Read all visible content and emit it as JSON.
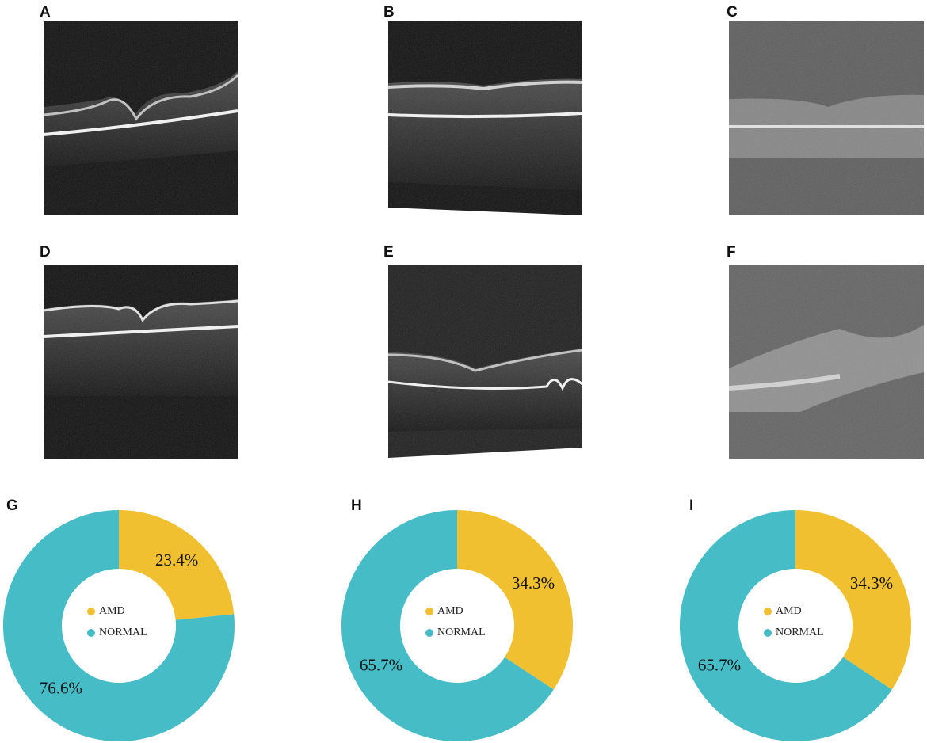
{
  "image_panels": [
    {
      "label": "A"
    },
    {
      "label": "B"
    },
    {
      "label": "C"
    },
    {
      "label": "D"
    },
    {
      "label": "E"
    },
    {
      "label": "F"
    }
  ],
  "chart_data": [
    {
      "type": "donut",
      "label": "G",
      "categories": [
        "AMD",
        "NORMAL"
      ],
      "values": [
        23.4,
        76.6
      ],
      "value_labels": [
        "23.4%",
        "76.6%"
      ],
      "colors": [
        "#f0c030",
        "#45bcc6"
      ]
    },
    {
      "type": "donut",
      "label": "H",
      "categories": [
        "AMD",
        "NORMAL"
      ],
      "values": [
        34.3,
        65.7
      ],
      "value_labels": [
        "34.3%",
        "65.7%"
      ],
      "colors": [
        "#f0c030",
        "#45bcc6"
      ]
    },
    {
      "type": "donut",
      "label": "I",
      "categories": [
        "AMD",
        "NORMAL"
      ],
      "values": [
        34.3,
        65.7
      ],
      "value_labels": [
        "34.3%",
        "65.7%"
      ],
      "colors": [
        "#f0c030",
        "#45bcc6"
      ]
    }
  ]
}
